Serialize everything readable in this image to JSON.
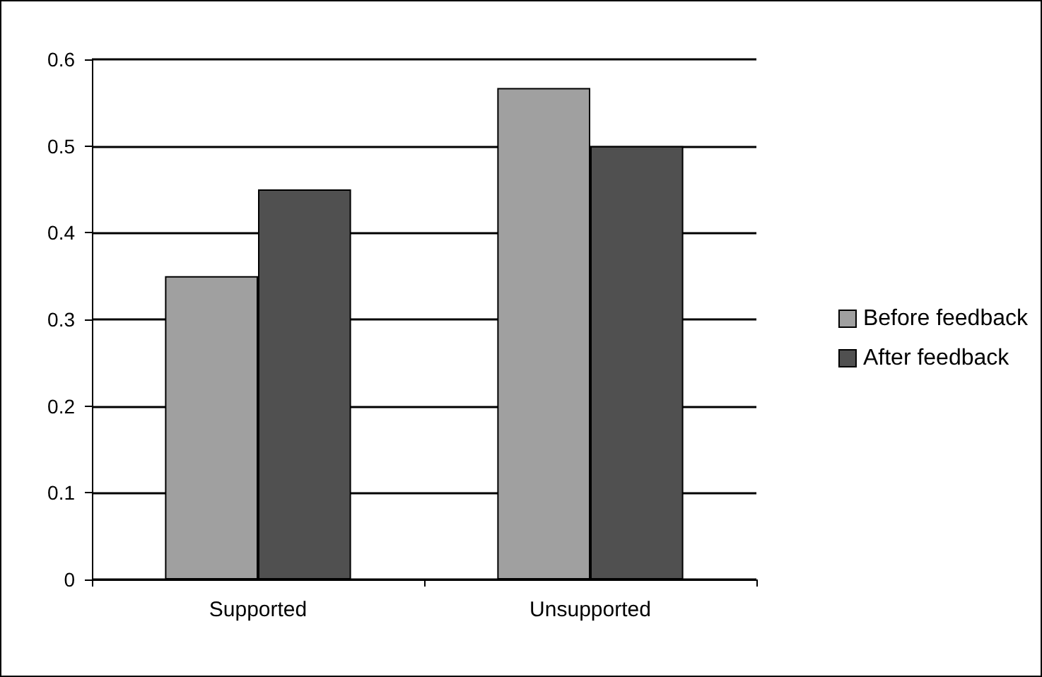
{
  "chart_data": {
    "type": "bar",
    "categories": [
      "Supported",
      "Unsupported"
    ],
    "series": [
      {
        "name": "Before feedback",
        "color": "#a0a0a0",
        "values": [
          0.35,
          0.567
        ]
      },
      {
        "name": "After feedback",
        "color": "#505050",
        "values": [
          0.45,
          0.5
        ]
      }
    ],
    "ylim": [
      0,
      0.6
    ],
    "yticks": [
      0,
      0.1,
      0.2,
      0.3,
      0.4,
      0.5,
      0.6
    ],
    "grid": "y",
    "legend": "right"
  }
}
